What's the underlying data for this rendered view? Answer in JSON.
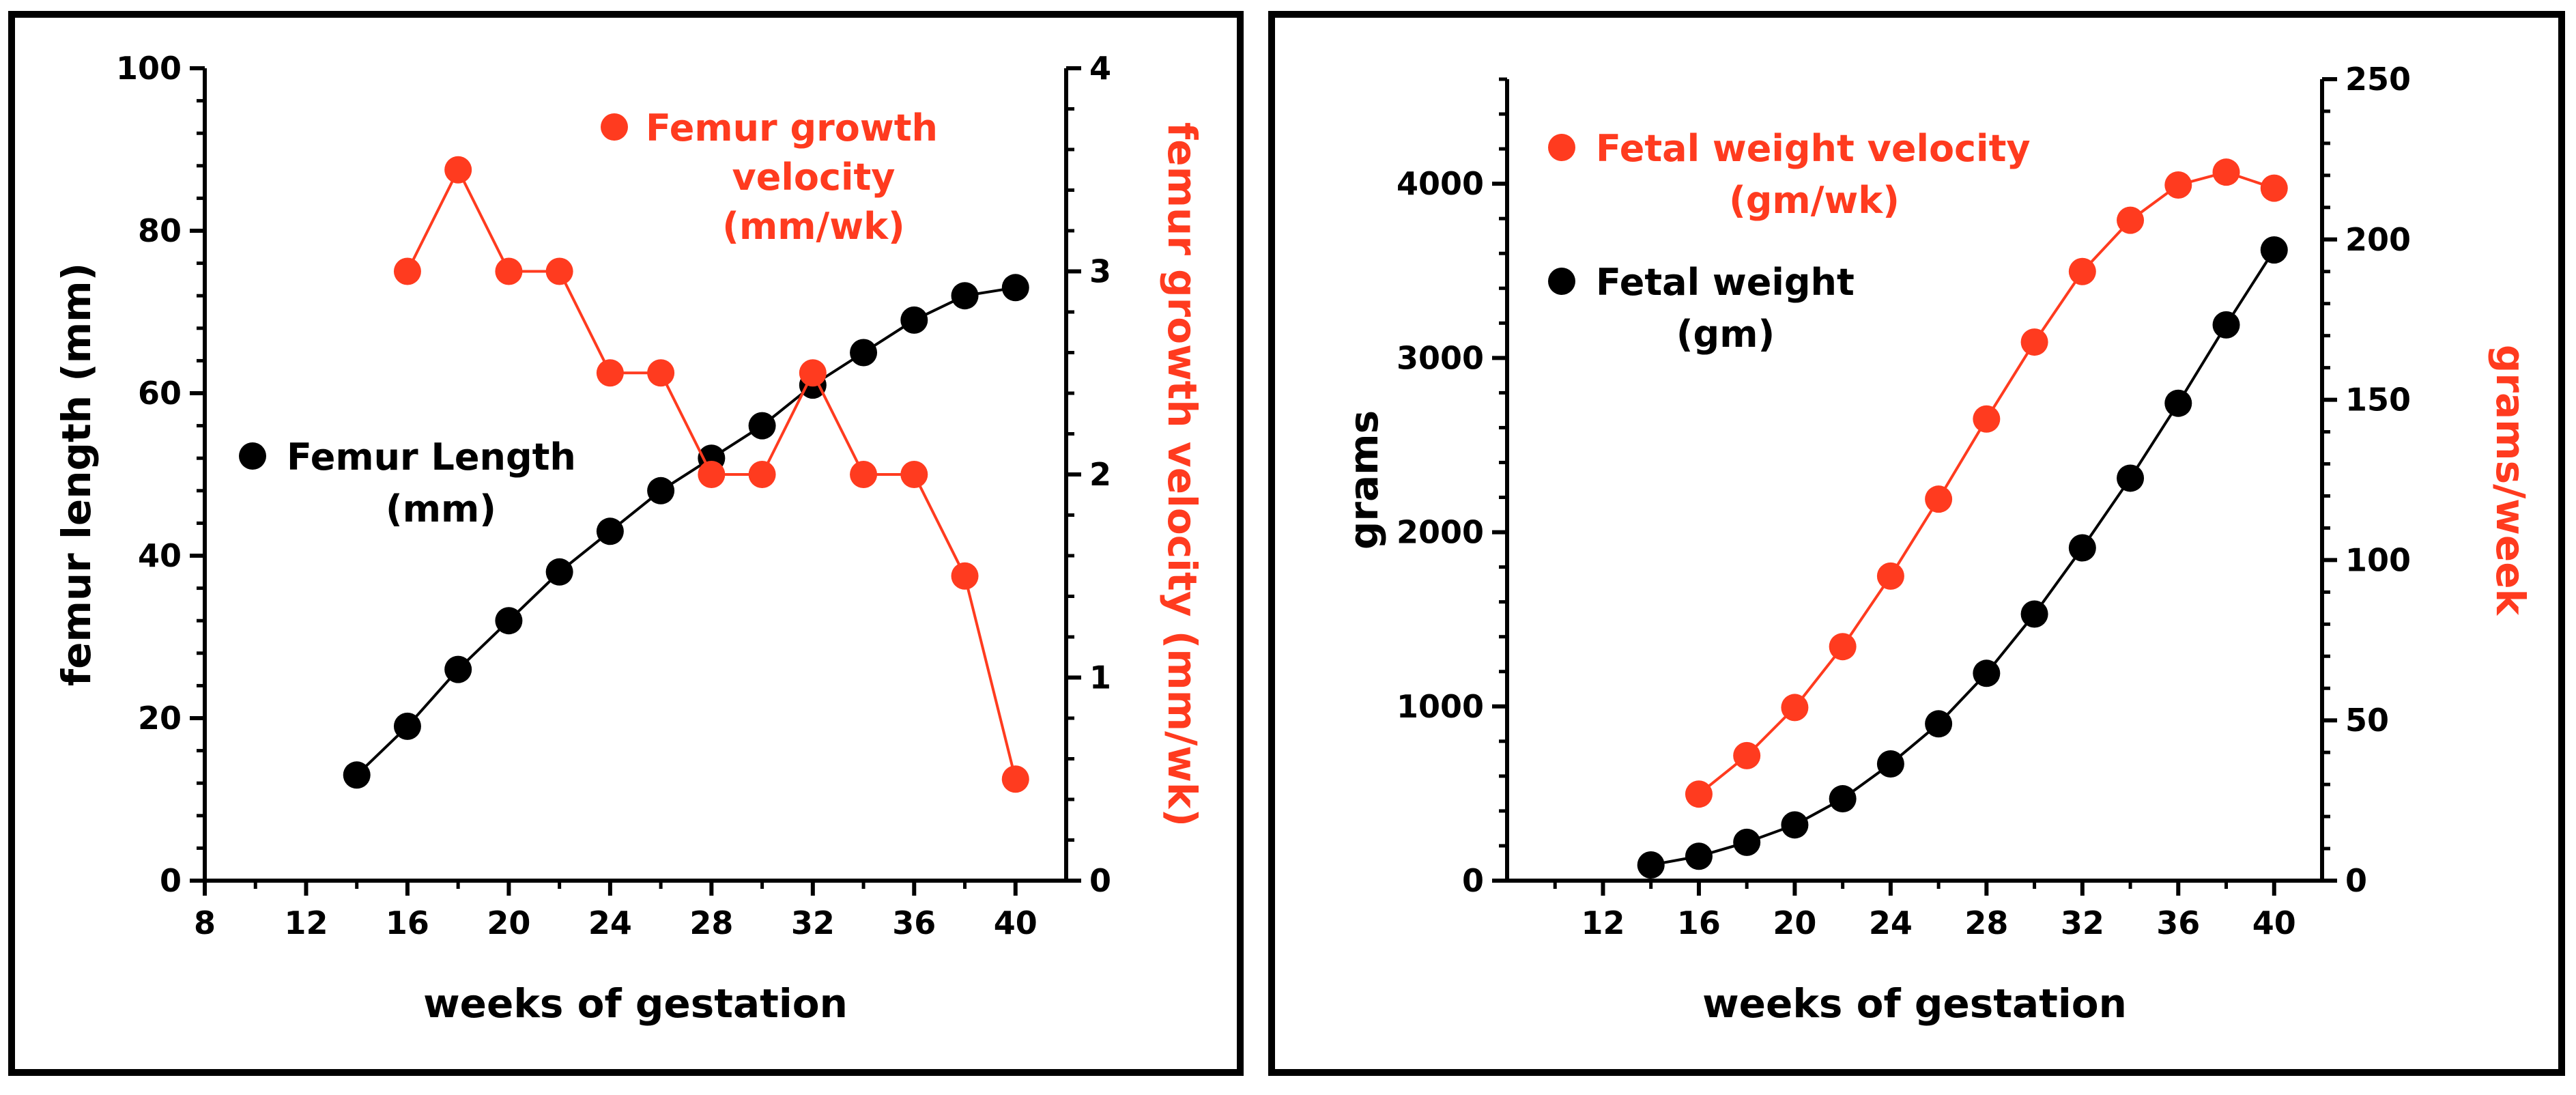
{
  "colors": {
    "black": "#000000",
    "red": "#ff3b1f"
  },
  "chart_data": [
    {
      "type": "line",
      "x": [],
      "xlabel": "weeks of gestation",
      "ylabel": "femur length (mm)",
      "y2label": "femur growth velocity (mm/wk)",
      "xlim": [
        8,
        42
      ],
      "ylim": [
        0,
        100
      ],
      "y2lim": [
        0,
        4
      ],
      "xticks": [
        8,
        12,
        16,
        20,
        24,
        28,
        32,
        36,
        40
      ],
      "yticks": [
        0,
        20,
        40,
        60,
        80,
        100
      ],
      "y2ticks": [
        0,
        1,
        2,
        3,
        4
      ],
      "legend": {
        "length_lines": [
          "Femur Length",
          "(mm)"
        ],
        "velocity_lines": [
          "Femur growth",
          "velocity",
          "(mm/wk)"
        ]
      },
      "series": [
        {
          "name": "Femur Length (mm)",
          "axis": "left",
          "color": "#000000",
          "x": [
            14,
            16,
            18,
            20,
            22,
            24,
            26,
            28,
            30,
            32,
            34,
            36,
            38,
            40
          ],
          "values": [
            13,
            19,
            26,
            32,
            38,
            43,
            48,
            52,
            56,
            61,
            65,
            69,
            72,
            73
          ]
        },
        {
          "name": "Femur growth velocity (mm/wk)",
          "axis": "right",
          "color": "#ff3b1f",
          "x": [
            16,
            18,
            20,
            22,
            24,
            26,
            28,
            30,
            32,
            34,
            36,
            38,
            40
          ],
          "values": [
            3.0,
            3.5,
            3.0,
            3.0,
            2.5,
            2.5,
            2.0,
            2.0,
            2.5,
            2.0,
            2.0,
            1.5,
            0.5
          ]
        }
      ]
    },
    {
      "type": "line",
      "xlabel": "weeks of gestation",
      "ylabel": "grams",
      "y2label": "grams/week",
      "xlim": [
        8,
        42
      ],
      "ylim": [
        0,
        4600
      ],
      "y2lim": [
        0,
        250
      ],
      "xticks": [
        12,
        16,
        20,
        24,
        28,
        32,
        36,
        40
      ],
      "yticks": [
        0,
        1000,
        2000,
        3000,
        4000
      ],
      "y2ticks": [
        0,
        50,
        100,
        150,
        200,
        250
      ],
      "legend": {
        "weight_lines": [
          "Fetal weight",
          "(gm)"
        ],
        "velocity_lines": [
          "Fetal weight velocity",
          "(gm/wk)"
        ]
      },
      "series": [
        {
          "name": "Fetal weight (gm)",
          "axis": "left",
          "color": "#000000",
          "x": [
            14,
            16,
            18,
            20,
            22,
            24,
            26,
            28,
            30,
            32,
            34,
            36,
            38,
            40
          ],
          "values": [
            90,
            140,
            220,
            320,
            470,
            670,
            900,
            1190,
            1530,
            1910,
            2310,
            2740,
            3190,
            3620
          ]
        },
        {
          "name": "Fetal weight velocity (gm/wk)",
          "axis": "right",
          "color": "#ff3b1f",
          "x": [
            16,
            18,
            20,
            22,
            24,
            26,
            28,
            30,
            32,
            34,
            36,
            38,
            40
          ],
          "values": [
            27,
            39,
            54,
            73,
            95,
            119,
            144,
            168,
            190,
            206,
            217,
            221,
            216
          ]
        }
      ]
    }
  ]
}
